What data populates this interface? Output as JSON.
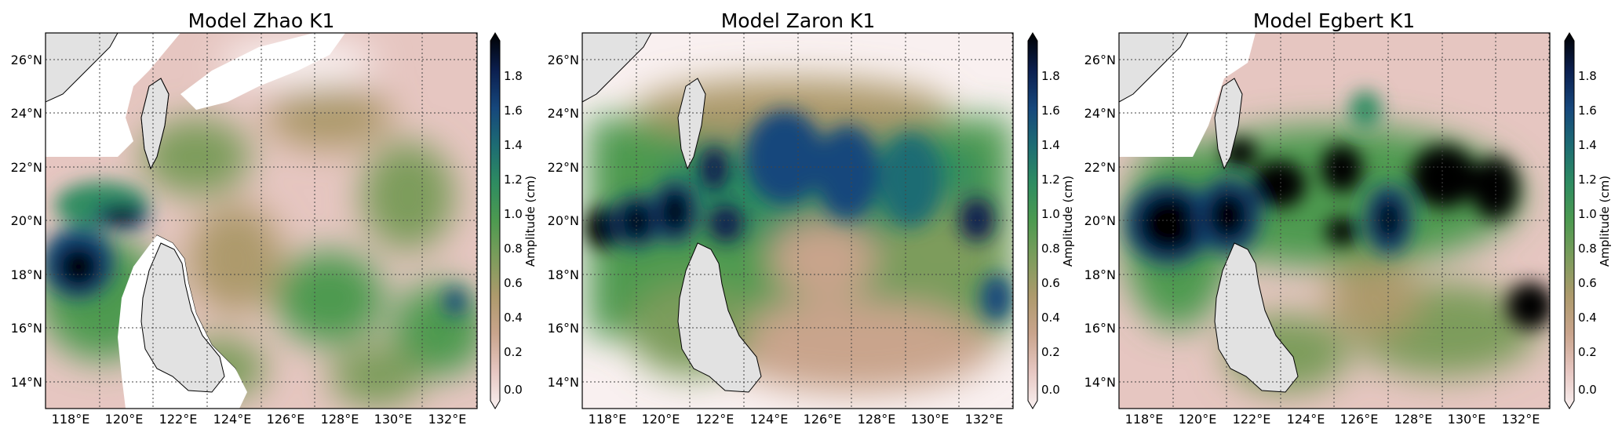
{
  "figure": {
    "panels": [
      {
        "title": "Model Zhao  K1"
      },
      {
        "title": "Model Zaron  K1"
      },
      {
        "title": "Model Egbert  K1"
      }
    ],
    "x_ticks": [
      "118°E",
      "120°E",
      "122°E",
      "124°E",
      "126°E",
      "128°E",
      "130°E",
      "132°E"
    ],
    "y_ticks": [
      "26°N",
      "24°N",
      "22°N",
      "20°N",
      "18°N",
      "16°N",
      "14°N"
    ],
    "colorbar": {
      "label": "Amplitude (cm)",
      "ticks": [
        "1.8",
        "1.6",
        "1.4",
        "1.2",
        "1.0",
        "0.8",
        "0.6",
        "0.4",
        "0.2",
        "0.0"
      ],
      "colors": [
        "#f9f0f0",
        "#e6c6c1",
        "#c9a48c",
        "#ad9a6c",
        "#7d9c5c",
        "#4d9a50",
        "#2e8c61",
        "#1d6c73",
        "#16477c",
        "#0b1f4f",
        "#000000"
      ]
    },
    "land_color": "#e2e2e2"
  }
}
